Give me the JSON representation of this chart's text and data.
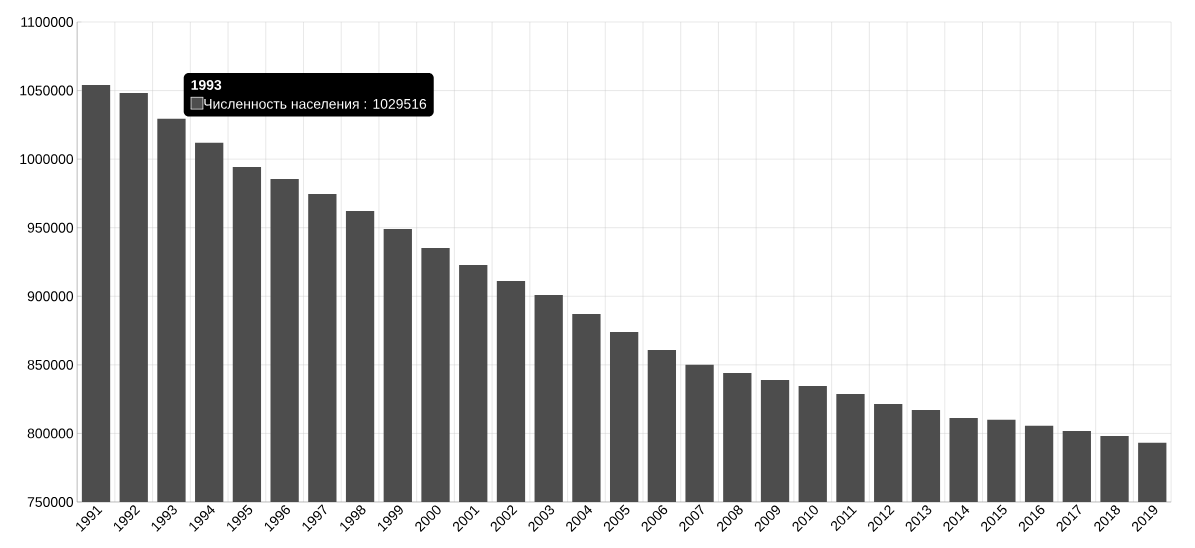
{
  "chart_data": {
    "type": "bar",
    "categories": [
      "1991",
      "1992",
      "1993",
      "1994",
      "1995",
      "1996",
      "1997",
      "1998",
      "1999",
      "2000",
      "2001",
      "2002",
      "2003",
      "2004",
      "2005",
      "2006",
      "2007",
      "2008",
      "2009",
      "2010",
      "2011",
      "2012",
      "2013",
      "2014",
      "2015",
      "2016",
      "2017",
      "2018",
      "2019"
    ],
    "values": [
      1054000,
      1048200,
      1029516,
      1012000,
      994300,
      985500,
      974600,
      962200,
      949100,
      935250,
      922850,
      911200,
      901000,
      887100,
      874000,
      860900,
      850000,
      844100,
      839000,
      834600,
      828800,
      821500,
      817100,
      811300,
      809900,
      805500,
      801800,
      798200,
      793100
    ],
    "color": "#4d4d4d",
    "ylim": [
      750000,
      1100000
    ],
    "yticks": [
      750000,
      800000,
      850000,
      900000,
      950000,
      1000000,
      1050000,
      1100000
    ],
    "grid": true,
    "annotations": [
      {
        "text": "1993",
        "x": "1993",
        "y": 1029516
      },
      {
        "text": "Численность населения : 1029516",
        "x": "1993",
        "y": 1029516
      }
    ]
  }
}
